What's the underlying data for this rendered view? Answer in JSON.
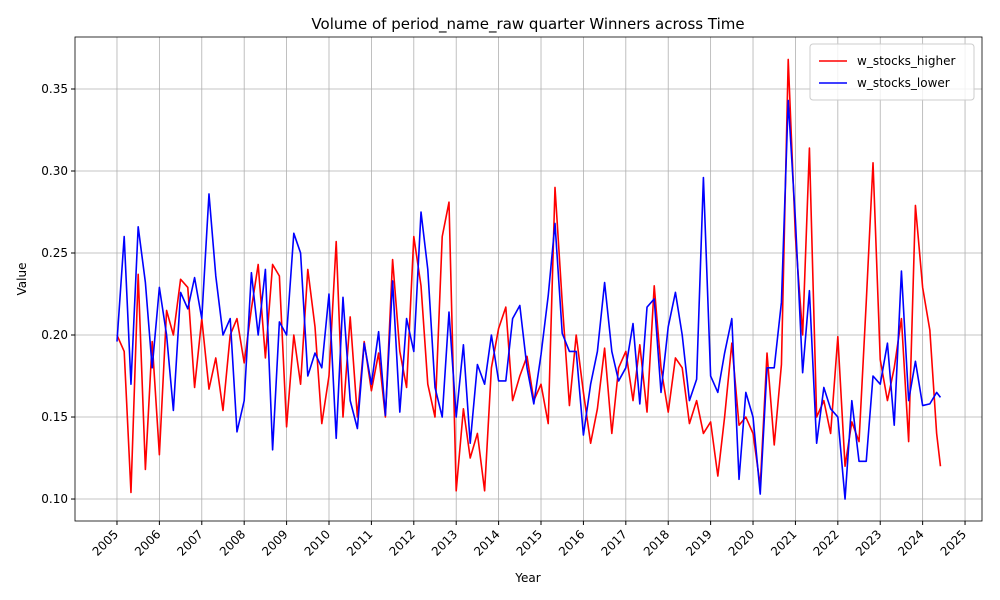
{
  "chart_data": {
    "type": "line",
    "title": "Volume of period_name_raw quarter Winners across Time",
    "x_label": "Year",
    "y_label": "Value",
    "x": [
      2005,
      2005.17,
      2005.33,
      2005.5,
      2005.67,
      2005.83,
      2006,
      2006.17,
      2006.33,
      2006.5,
      2006.67,
      2006.83,
      2007,
      2007.17,
      2007.33,
      2007.5,
      2007.67,
      2007.83,
      2008,
      2008.17,
      2008.33,
      2008.5,
      2008.67,
      2008.83,
      2009,
      2009.17,
      2009.33,
      2009.5,
      2009.67,
      2009.83,
      2010,
      2010.17,
      2010.33,
      2010.5,
      2010.67,
      2010.83,
      2011,
      2011.17,
      2011.33,
      2011.5,
      2011.67,
      2011.83,
      2012,
      2012.17,
      2012.33,
      2012.5,
      2012.67,
      2012.83,
      2013,
      2013.17,
      2013.33,
      2013.5,
      2013.67,
      2013.83,
      2014,
      2014.17,
      2014.33,
      2014.5,
      2014.67,
      2014.83,
      2015,
      2015.17,
      2015.33,
      2015.5,
      2015.67,
      2015.83,
      2016,
      2016.17,
      2016.33,
      2016.5,
      2016.67,
      2016.83,
      2017,
      2017.17,
      2017.33,
      2017.5,
      2017.67,
      2017.83,
      2018,
      2018.17,
      2018.33,
      2018.5,
      2018.67,
      2018.83,
      2019,
      2019.17,
      2019.33,
      2019.5,
      2019.67,
      2019.83,
      2020,
      2020.17,
      2020.33,
      2020.5,
      2020.67,
      2020.83,
      2021,
      2021.17,
      2021.33,
      2021.5,
      2021.67,
      2021.83,
      2022,
      2022.17,
      2022.33,
      2022.5,
      2022.67,
      2022.83,
      2023,
      2023.17,
      2023.33,
      2023.5,
      2023.67,
      2023.83,
      2024,
      2024.17,
      2024.33,
      2024.42
    ],
    "series": [
      {
        "name": "w_stocks_higher",
        "color": "#ff0000",
        "values": [
          0.2,
          0.19,
          0.104,
          0.237,
          0.118,
          0.196,
          0.127,
          0.215,
          0.2,
          0.234,
          0.229,
          0.168,
          0.21,
          0.167,
          0.186,
          0.154,
          0.2,
          0.21,
          0.183,
          0.216,
          0.243,
          0.186,
          0.243,
          0.236,
          0.144,
          0.2,
          0.17,
          0.24,
          0.205,
          0.146,
          0.175,
          0.257,
          0.15,
          0.211,
          0.15,
          0.196,
          0.166,
          0.189,
          0.15,
          0.246,
          0.19,
          0.168,
          0.26,
          0.23,
          0.17,
          0.15,
          0.26,
          0.281,
          0.105,
          0.155,
          0.125,
          0.14,
          0.105,
          0.18,
          0.204,
          0.217,
          0.16,
          0.175,
          0.187,
          0.16,
          0.17,
          0.146,
          0.29,
          0.22,
          0.157,
          0.2,
          0.165,
          0.134,
          0.155,
          0.192,
          0.14,
          0.18,
          0.19,
          0.16,
          0.194,
          0.153,
          0.23,
          0.18,
          0.153,
          0.186,
          0.18,
          0.146,
          0.16,
          0.14,
          0.147,
          0.114,
          0.15,
          0.195,
          0.145,
          0.15,
          0.14,
          0.108,
          0.189,
          0.133,
          0.182,
          0.368,
          0.26,
          0.2,
          0.314,
          0.15,
          0.16,
          0.14,
          0.199,
          0.12,
          0.147,
          0.135,
          0.22,
          0.305,
          0.185,
          0.16,
          0.18,
          0.21,
          0.135,
          0.279,
          0.229,
          0.203,
          0.14,
          0.12
        ]
      },
      {
        "name": "w_stocks_lower",
        "color": "#0000ff",
        "values": [
          0.196,
          0.26,
          0.17,
          0.266,
          0.232,
          0.18,
          0.229,
          0.2,
          0.154,
          0.226,
          0.216,
          0.235,
          0.21,
          0.286,
          0.236,
          0.2,
          0.21,
          0.141,
          0.16,
          0.238,
          0.2,
          0.24,
          0.13,
          0.208,
          0.2,
          0.262,
          0.25,
          0.175,
          0.189,
          0.18,
          0.225,
          0.137,
          0.223,
          0.16,
          0.143,
          0.195,
          0.17,
          0.202,
          0.151,
          0.233,
          0.153,
          0.21,
          0.19,
          0.275,
          0.24,
          0.168,
          0.15,
          0.214,
          0.15,
          0.194,
          0.134,
          0.182,
          0.17,
          0.2,
          0.172,
          0.172,
          0.21,
          0.218,
          0.18,
          0.158,
          0.188,
          0.224,
          0.268,
          0.201,
          0.19,
          0.19,
          0.139,
          0.17,
          0.19,
          0.232,
          0.19,
          0.172,
          0.18,
          0.207,
          0.158,
          0.217,
          0.222,
          0.165,
          0.205,
          0.226,
          0.2,
          0.16,
          0.173,
          0.296,
          0.175,
          0.165,
          0.189,
          0.21,
          0.112,
          0.165,
          0.15,
          0.103,
          0.18,
          0.18,
          0.22,
          0.343,
          0.27,
          0.177,
          0.227,
          0.134,
          0.168,
          0.155,
          0.15,
          0.1,
          0.16,
          0.123,
          0.123,
          0.175,
          0.17,
          0.195,
          0.145,
          0.239,
          0.16,
          0.184,
          0.157,
          0.158,
          0.165,
          0.162
        ]
      }
    ],
    "xlim": [
      2004.01,
      2025.4
    ],
    "xticks": [
      2005,
      2006,
      2007,
      2008,
      2009,
      2010,
      2011,
      2012,
      2013,
      2014,
      2015,
      2016,
      2017,
      2018,
      2019,
      2020,
      2021,
      2022,
      2023,
      2024,
      2025
    ],
    "ylim": [
      0.0866,
      0.3817
    ],
    "yticks": [
      {
        "value": 0.1,
        "label": "0.10"
      },
      0.15,
      {
        "value": 0.2,
        "label": "0.20"
      },
      0.25,
      {
        "value": 0.3,
        "label": "0.30"
      },
      0.35
    ],
    "grid": true,
    "legend": "upper right"
  }
}
